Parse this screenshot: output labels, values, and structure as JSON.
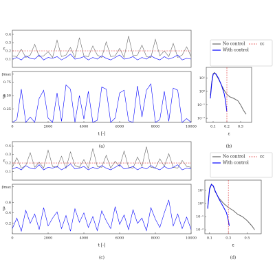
{
  "chart_data": [
    {
      "type": "line",
      "ylabel": "ε",
      "xlim": [
        0,
        10000
      ],
      "ylim": [
        0,
        0.45
      ],
      "yticks": [
        0.1,
        0.2,
        0.3,
        0.4
      ],
      "x": [
        0,
        250,
        500,
        750,
        1000,
        1250,
        1500,
        1750,
        2000,
        2250,
        2500,
        2750,
        3000,
        3250,
        3500,
        3750,
        4000,
        4250,
        4500,
        4750,
        5000,
        5250,
        5500,
        5750,
        6000,
        6250,
        6500,
        6750,
        7000,
        7250,
        7500,
        7750,
        8000,
        8250,
        8500,
        8750,
        9000,
        9250,
        9500,
        9750,
        10000
      ],
      "threshold": {
        "axis": "y",
        "value": 0.2,
        "color": "#e03030"
      },
      "series": [
        {
          "name": "No control",
          "color": "#666666",
          "values": [
            0.14,
            0.13,
            0.22,
            0.12,
            0.15,
            0.28,
            0.13,
            0.14,
            0.19,
            0.12,
            0.33,
            0.13,
            0.15,
            0.24,
            0.12,
            0.36,
            0.14,
            0.13,
            0.26,
            0.15,
            0.12,
            0.31,
            0.13,
            0.14,
            0.23,
            0.12,
            0.38,
            0.14,
            0.15,
            0.27,
            0.13,
            0.12,
            0.34,
            0.14,
            0.2,
            0.13,
            0.29,
            0.12,
            0.15,
            0.25,
            0.13
          ]
        },
        {
          "name": "With control",
          "color": "#0000ff",
          "values": [
            0.1,
            0.12,
            0.09,
            0.14,
            0.11,
            0.1,
            0.15,
            0.09,
            0.12,
            0.11,
            0.13,
            0.09,
            0.12,
            0.16,
            0.1,
            0.11,
            0.13,
            0.09,
            0.12,
            0.1,
            0.14,
            0.11,
            0.09,
            0.12,
            0.15,
            0.1,
            0.11,
            0.13,
            0.09,
            0.12,
            0.1,
            0.14,
            0.11,
            0.09,
            0.13,
            0.1,
            0.12,
            0.15,
            0.09,
            0.11,
            0.1
          ]
        }
      ]
    },
    {
      "type": "line",
      "ylabel": "β",
      "xlabel": "t [-]",
      "caption": "(a)",
      "xlim": [
        0,
        10000
      ],
      "ylim": [
        0,
        0.95
      ],
      "yticks": [
        {
          "value": 0.25,
          "label": "0.25"
        },
        {
          "value": 0.5,
          "label": "0.50"
        },
        {
          "value": 0.75,
          "label": "0.75"
        },
        {
          "value": 0.9,
          "label": "βmax"
        }
      ],
      "xticks": [
        0,
        2000,
        4000,
        6000,
        8000,
        10000
      ],
      "x": [
        0,
        250,
        500,
        750,
        1000,
        1250,
        1500,
        1750,
        2000,
        2250,
        2500,
        2750,
        3000,
        3250,
        3500,
        3750,
        4000,
        4250,
        4500,
        4750,
        5000,
        5250,
        5500,
        5750,
        6000,
        6250,
        6500,
        6750,
        7000,
        7250,
        7500,
        7750,
        8000,
        8250,
        8500,
        8750,
        9000,
        9250,
        9500,
        9750,
        10000
      ],
      "series": [
        {
          "name": "With control",
          "color": "#0000ff",
          "values": [
            0,
            0.05,
            0.62,
            0,
            0.1,
            0,
            0.45,
            0.6,
            0.08,
            0,
            0.55,
            0.02,
            0.7,
            0.62,
            0,
            0.5,
            0.06,
            0.58,
            0,
            0.04,
            0.66,
            0.62,
            0,
            0.08,
            0.55,
            0.6,
            0.03,
            0,
            0.68,
            0.1,
            0.6,
            0.72,
            0,
            0.05,
            0.58,
            0.02,
            0.64,
            0.6,
            0,
            0.07,
            0
          ]
        }
      ]
    },
    {
      "type": "line",
      "log_y": true,
      "legend": true,
      "xlabel": "ε",
      "caption": "(b)",
      "xlim": [
        0.05,
        0.38
      ],
      "ylim": [
        0.005,
        60
      ],
      "xticks": [
        0.1,
        0.2,
        0.3
      ],
      "yticks": [
        {
          "value": 0.01,
          "label": "10⁻²"
        },
        {
          "value": 0.1,
          "label": "10⁻¹"
        },
        {
          "value": 1,
          "label": "10⁰"
        },
        {
          "value": 10,
          "label": "10¹"
        }
      ],
      "threshold": {
        "axis": "x",
        "name": "εc",
        "value": 0.2,
        "color": "#e03030"
      },
      "series": [
        {
          "name": "No control",
          "color": "#666666",
          "x": [
            0.08,
            0.09,
            0.1,
            0.11,
            0.12,
            0.14,
            0.16,
            0.18,
            0.2,
            0.22,
            0.25,
            0.28,
            0.3,
            0.32,
            0.34
          ],
          "values": [
            0.5,
            5,
            20,
            25,
            18,
            8,
            3,
            1.2,
            0.6,
            0.4,
            0.3,
            0.2,
            0.1,
            0.04,
            0.02
          ]
        },
        {
          "name": "With control",
          "color": "#0000ff",
          "x": [
            0.08,
            0.09,
            0.1,
            0.11,
            0.12,
            0.14,
            0.16,
            0.18,
            0.19,
            0.2
          ],
          "values": [
            0.3,
            4,
            18,
            22,
            20,
            9,
            3,
            0.7,
            0.2,
            0.03
          ]
        }
      ]
    },
    {
      "type": "line",
      "ylabel": "ε",
      "xlim": [
        0,
        10000
      ],
      "ylim": [
        0,
        0.45
      ],
      "yticks": [
        0.1,
        0.2,
        0.3,
        0.4
      ],
      "x": [
        0,
        250,
        500,
        750,
        1000,
        1250,
        1500,
        1750,
        2000,
        2250,
        2500,
        2750,
        3000,
        3250,
        3500,
        3750,
        4000,
        4250,
        4500,
        4750,
        5000,
        5250,
        5500,
        5750,
        6000,
        6250,
        6500,
        6750,
        7000,
        7250,
        7500,
        7750,
        8000,
        8250,
        8500,
        8750,
        9000,
        9250,
        9500,
        9750,
        10000
      ],
      "threshold": {
        "axis": "y",
        "value": 0.2,
        "color": "#e03030"
      },
      "series": [
        {
          "name": "No control",
          "color": "#666666",
          "values": [
            0.15,
            0.26,
            0.14,
            0.17,
            0.32,
            0.15,
            0.21,
            0.14,
            0.35,
            0.16,
            0.15,
            0.28,
            0.14,
            0.33,
            0.17,
            0.15,
            0.24,
            0.14,
            0.37,
            0.16,
            0.15,
            0.29,
            0.14,
            0.22,
            0.16,
            0.34,
            0.15,
            0.14,
            0.27,
            0.16,
            0.39,
            0.15,
            0.14,
            0.25,
            0.16,
            0.31,
            0.15,
            0.14,
            0.23,
            0.16,
            0.15
          ]
        },
        {
          "name": "With control",
          "color": "#0000ff",
          "values": [
            0.13,
            0.15,
            0.12,
            0.17,
            0.14,
            0.13,
            0.18,
            0.12,
            0.15,
            0.14,
            0.16,
            0.12,
            0.15,
            0.19,
            0.13,
            0.14,
            0.16,
            0.12,
            0.15,
            0.13,
            0.17,
            0.14,
            0.12,
            0.15,
            0.18,
            0.13,
            0.14,
            0.16,
            0.12,
            0.15,
            0.13,
            0.17,
            0.14,
            0.12,
            0.16,
            0.13,
            0.15,
            0.18,
            0.12,
            0.14,
            0.13
          ]
        }
      ]
    },
    {
      "type": "line",
      "ylabel": "β",
      "xlabel": "t [-]",
      "caption": "(c)",
      "xlim": [
        0,
        10000
      ],
      "ylim": [
        0,
        0.95
      ],
      "yticks": [
        {
          "value": 0.2,
          "label": "0.2"
        },
        {
          "value": 0.4,
          "label": "0.4"
        },
        {
          "value": 0.6,
          "label": "0.6"
        },
        {
          "value": 0.9,
          "label": "βmax"
        }
      ],
      "xticks": [
        0,
        2000,
        4000,
        6000,
        8000,
        10000
      ],
      "x": [
        0,
        250,
        500,
        750,
        1000,
        1250,
        1500,
        1750,
        2000,
        2250,
        2500,
        2750,
        3000,
        3250,
        3500,
        3750,
        4000,
        4250,
        4500,
        4750,
        5000,
        5250,
        5500,
        5750,
        6000,
        6250,
        6500,
        6750,
        7000,
        7250,
        7500,
        7750,
        8000,
        8250,
        8500,
        8750,
        9000,
        9250,
        9500,
        9750,
        10000
      ],
      "series": [
        {
          "name": "With control",
          "color": "#0000ff",
          "values": [
            0.1,
            0.3,
            0.05,
            0.45,
            0.2,
            0.38,
            0.08,
            0.5,
            0.15,
            0.3,
            0.42,
            0.1,
            0.35,
            0.05,
            0.48,
            0.22,
            0.4,
            0.12,
            0.33,
            0.06,
            0.44,
            0.25,
            0.1,
            0.52,
            0.18,
            0.36,
            0.08,
            0.46,
            0.2,
            0.3,
            0.06,
            0.5,
            0.28,
            0.12,
            0.4,
            0.65,
            0.15,
            0.38,
            0.1,
            0.32,
            0.08
          ]
        }
      ]
    },
    {
      "type": "line",
      "log_y": true,
      "legend": true,
      "xlabel": "ε",
      "caption": "(d)",
      "xlim": [
        0.05,
        0.65
      ],
      "ylim": [
        0.005,
        60
      ],
      "xticks": [
        0.1,
        0.3,
        0.5
      ],
      "yticks": [
        {
          "value": 0.01,
          "label": "10⁻²"
        },
        {
          "value": 0.1,
          "label": "10⁻¹"
        },
        {
          "value": 1,
          "label": "10⁰"
        },
        {
          "value": 10,
          "label": "10¹"
        }
      ],
      "threshold": {
        "axis": "x",
        "name": "εc",
        "value": 0.3,
        "color": "#e03030"
      },
      "series": [
        {
          "name": "No control",
          "color": "#666666",
          "x": [
            0.08,
            0.1,
            0.12,
            0.14,
            0.16,
            0.2,
            0.25,
            0.3,
            0.35,
            0.4,
            0.45,
            0.5,
            0.55,
            0.58
          ],
          "values": [
            0.5,
            15,
            30,
            20,
            8,
            2.5,
            1,
            0.5,
            0.3,
            0.15,
            0.1,
            0.05,
            0.02,
            0.01
          ]
        },
        {
          "name": "With control",
          "color": "#0000ff",
          "x": [
            0.08,
            0.1,
            0.12,
            0.14,
            0.16,
            0.2,
            0.25,
            0.28,
            0.3,
            0.31
          ],
          "values": [
            0.4,
            12,
            28,
            22,
            9,
            2.2,
            0.5,
            0.2,
            0.05,
            0.02
          ]
        }
      ]
    }
  ]
}
